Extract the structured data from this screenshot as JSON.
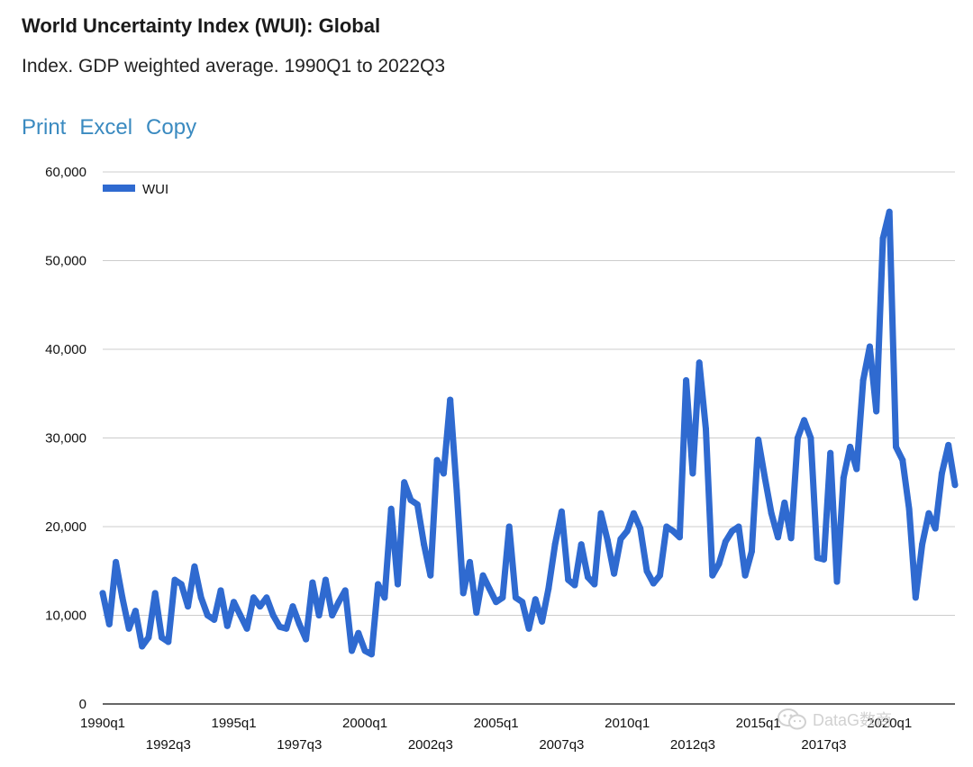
{
  "header": {
    "title": "World Uncertainty Index (WUI): Global",
    "subtitle": "Index. GDP weighted average. 1990Q1 to 2022Q3"
  },
  "toolbar": {
    "print_label": "Print",
    "excel_label": "Excel",
    "copy_label": "Copy"
  },
  "watermark": {
    "text": "DataG数商",
    "icon": "wechat-icon"
  },
  "colors": {
    "series": "#2f6ad0",
    "grid": "#cccccc",
    "axis": "#333333",
    "link": "#3a8ac0"
  },
  "chart_data": {
    "type": "line",
    "grid": true,
    "legend_position": "top-left",
    "ylim": [
      0,
      60000
    ],
    "y_ticks": [
      0,
      10000,
      20000,
      30000,
      40000,
      50000,
      60000
    ],
    "y_tick_labels": [
      "0",
      "10,000",
      "20,000",
      "30,000",
      "40,000",
      "50,000",
      "60,000"
    ],
    "x_start": "1990q1",
    "x_end": "2022q3",
    "x_tick_labels": [
      {
        "label": "1990q1",
        "index": 0
      },
      {
        "label": "1992q3",
        "index": 10
      },
      {
        "label": "1995q1",
        "index": 20
      },
      {
        "label": "1997q3",
        "index": 30
      },
      {
        "label": "2000q1",
        "index": 40
      },
      {
        "label": "2002q3",
        "index": 50
      },
      {
        "label": "2005q1",
        "index": 60
      },
      {
        "label": "2007q3",
        "index": 70
      },
      {
        "label": "2010q1",
        "index": 80
      },
      {
        "label": "2012q3",
        "index": 90
      },
      {
        "label": "2015q1",
        "index": 100
      },
      {
        "label": "2017q3",
        "index": 110
      },
      {
        "label": "2020q1",
        "index": 120
      }
    ],
    "series": [
      {
        "name": "WUI",
        "values": [
          12500,
          9000,
          16000,
          12000,
          8500,
          10500,
          6500,
          7500,
          12500,
          7500,
          7000,
          14000,
          13500,
          11000,
          15500,
          12000,
          10000,
          9500,
          12800,
          8800,
          11500,
          10000,
          8500,
          12000,
          11000,
          12000,
          10000,
          8700,
          8500,
          11000,
          9000,
          7300,
          13700,
          10000,
          14000,
          10000,
          11500,
          12800,
          6000,
          8000,
          6000,
          5600,
          13500,
          12000,
          22000,
          13500,
          25000,
          23000,
          22500,
          18000,
          14500,
          27500,
          26000,
          34300,
          24000,
          12500,
          16000,
          10300,
          14500,
          13000,
          11500,
          12000,
          20000,
          12000,
          11500,
          8500,
          11800,
          9300,
          13000,
          18000,
          21700,
          14000,
          13400,
          18000,
          14300,
          13500,
          21500,
          18500,
          14700,
          18600,
          19500,
          21500,
          19800,
          15000,
          13600,
          14500,
          20000,
          19500,
          18800,
          36500,
          26000,
          38500,
          31000,
          14500,
          15800,
          18300,
          19500,
          20000,
          14500,
          17200,
          29800,
          25500,
          21500,
          18800,
          22700,
          18700,
          30000,
          32000,
          30000,
          16500,
          16300,
          28300,
          13800,
          25500,
          29000,
          26500,
          36500,
          40300,
          33000,
          52500,
          55500,
          29000,
          27500,
          22000,
          12000,
          18000,
          21500,
          19800,
          26000,
          29200,
          24700
        ]
      }
    ]
  }
}
